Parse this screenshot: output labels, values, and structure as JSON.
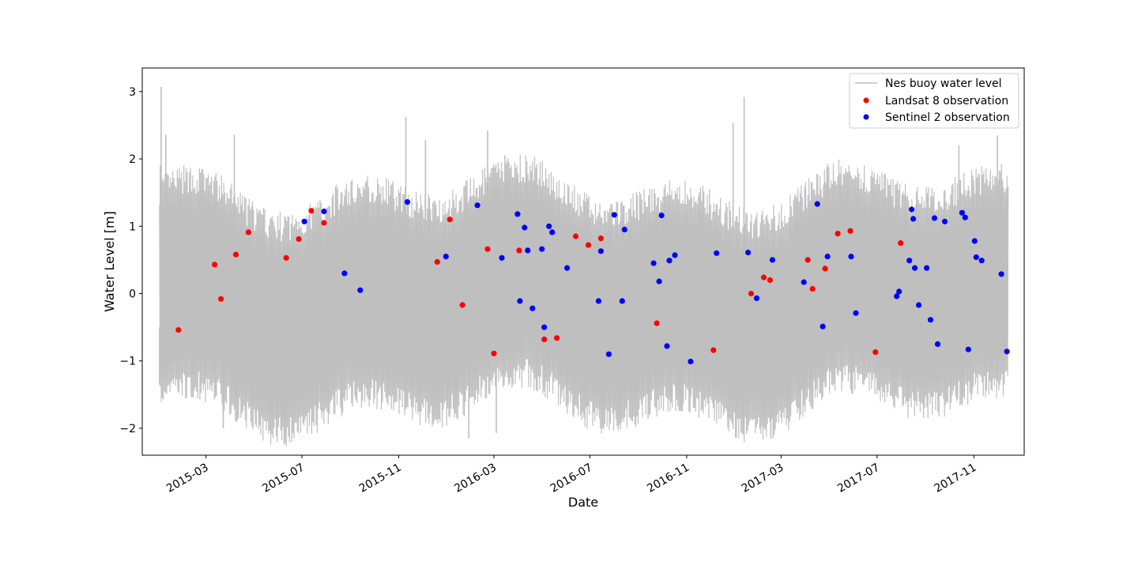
{
  "chart_data": {
    "type": "scatter",
    "xlabel": "Date",
    "ylabel": "Water Level [m]",
    "ylim": [
      -2.4,
      3.35
    ],
    "xlim": [
      "2014-12-10",
      "2018-01-04"
    ],
    "x_ticks": [
      {
        "date": "2015-03-01",
        "label": "2015-03"
      },
      {
        "date": "2015-07-01",
        "label": "2015-07"
      },
      {
        "date": "2015-11-01",
        "label": "2015-11"
      },
      {
        "date": "2016-03-01",
        "label": "2016-03"
      },
      {
        "date": "2016-07-01",
        "label": "2016-07"
      },
      {
        "date": "2016-11-01",
        "label": "2016-11"
      },
      {
        "date": "2017-03-01",
        "label": "2017-03"
      },
      {
        "date": "2017-07-01",
        "label": "2017-07"
      },
      {
        "date": "2017-11-01",
        "label": "2017-11"
      }
    ],
    "y_ticks": [
      {
        "value": 3,
        "label": "3"
      },
      {
        "value": 2,
        "label": "2"
      },
      {
        "value": 1,
        "label": "1"
      },
      {
        "value": 0,
        "label": "0"
      },
      {
        "value": -1,
        "label": "−1"
      },
      {
        "value": -2,
        "label": "−2"
      }
    ],
    "legend_position": "top-right",
    "series": [
      {
        "name": "Nes buoy water level",
        "kind": "line",
        "color": "#bfbfbf",
        "x_start": "2015-01-01",
        "x_end": "2017-12-15",
        "typical_range": [
          -1.55,
          1.45
        ],
        "peaks": [
          {
            "x": "2015-01-03",
            "y": 3.07
          },
          {
            "x": "2015-01-02",
            "y": 1.9
          },
          {
            "x": "2015-01-09",
            "y": 2.36
          },
          {
            "x": "2015-04-06",
            "y": 2.36
          },
          {
            "x": "2015-11-10",
            "y": 2.62
          },
          {
            "x": "2015-12-05",
            "y": 2.28
          },
          {
            "x": "2016-02-22",
            "y": 2.42
          },
          {
            "x": "2016-03-15",
            "y": 2.05
          },
          {
            "x": "2016-12-30",
            "y": 2.53
          },
          {
            "x": "2017-01-13",
            "y": 2.92
          },
          {
            "x": "2017-10-13",
            "y": 2.2
          },
          {
            "x": "2017-12-01",
            "y": 2.35
          }
        ],
        "troughs": [
          {
            "x": "2015-03-23",
            "y": -2.0
          },
          {
            "x": "2016-01-29",
            "y": -2.15
          },
          {
            "x": "2016-03-04",
            "y": -2.07
          },
          {
            "x": "2017-02-16",
            "y": -2.15
          },
          {
            "x": "2015-01-01",
            "y": -1.35
          }
        ]
      },
      {
        "name": "Landsat 8 observation",
        "kind": "scatter",
        "color": "#ff0000",
        "points": [
          {
            "x": "2015-01-25",
            "y": -0.54
          },
          {
            "x": "2015-03-12",
            "y": 0.43
          },
          {
            "x": "2015-03-20",
            "y": -0.08
          },
          {
            "x": "2015-04-08",
            "y": 0.58
          },
          {
            "x": "2015-04-24",
            "y": 0.91
          },
          {
            "x": "2015-06-11",
            "y": 0.53
          },
          {
            "x": "2015-06-27",
            "y": 0.81
          },
          {
            "x": "2015-07-13",
            "y": 1.23
          },
          {
            "x": "2015-07-29",
            "y": 1.05
          },
          {
            "x": "2015-12-20",
            "y": 0.47
          },
          {
            "x": "2016-01-05",
            "y": 1.1
          },
          {
            "x": "2016-01-21",
            "y": -0.17
          },
          {
            "x": "2016-02-22",
            "y": 0.66
          },
          {
            "x": "2016-03-01",
            "y": -0.89
          },
          {
            "x": "2016-04-02",
            "y": 0.64
          },
          {
            "x": "2016-05-04",
            "y": -0.68
          },
          {
            "x": "2016-05-20",
            "y": -0.66
          },
          {
            "x": "2016-06-13",
            "y": 0.85
          },
          {
            "x": "2016-06-29",
            "y": 0.72
          },
          {
            "x": "2016-07-15",
            "y": 0.82
          },
          {
            "x": "2016-09-24",
            "y": -0.44
          },
          {
            "x": "2016-12-05",
            "y": -0.84
          },
          {
            "x": "2017-01-22",
            "y": 0.0
          },
          {
            "x": "2017-02-07",
            "y": 0.24
          },
          {
            "x": "2017-02-15",
            "y": 0.2
          },
          {
            "x": "2017-04-04",
            "y": 0.5
          },
          {
            "x": "2017-04-10",
            "y": 0.07
          },
          {
            "x": "2017-04-26",
            "y": 0.37
          },
          {
            "x": "2017-05-12",
            "y": 0.89
          },
          {
            "x": "2017-05-28",
            "y": 0.93
          },
          {
            "x": "2017-06-29",
            "y": -0.87
          },
          {
            "x": "2017-07-31",
            "y": 0.75
          }
        ]
      },
      {
        "name": "Sentinel 2 observation",
        "kind": "scatter",
        "color": "#0000ff",
        "points": [
          {
            "x": "2015-07-04",
            "y": 1.07
          },
          {
            "x": "2015-07-29",
            "y": 1.22
          },
          {
            "x": "2015-08-24",
            "y": 0.3
          },
          {
            "x": "2015-09-13",
            "y": 0.05
          },
          {
            "x": "2015-11-12",
            "y": 1.36
          },
          {
            "x": "2015-12-31",
            "y": 0.55
          },
          {
            "x": "2016-02-09",
            "y": 1.31
          },
          {
            "x": "2016-03-11",
            "y": 0.53
          },
          {
            "x": "2016-03-31",
            "y": 1.18
          },
          {
            "x": "2016-04-03",
            "y": -0.11
          },
          {
            "x": "2016-04-09",
            "y": 0.98
          },
          {
            "x": "2016-04-13",
            "y": 0.64
          },
          {
            "x": "2016-04-19",
            "y": -0.22
          },
          {
            "x": "2016-05-01",
            "y": 0.66
          },
          {
            "x": "2016-05-04",
            "y": -0.5
          },
          {
            "x": "2016-05-10",
            "y": 1.0
          },
          {
            "x": "2016-05-14",
            "y": 0.91
          },
          {
            "x": "2016-06-02",
            "y": 0.38
          },
          {
            "x": "2016-07-12",
            "y": -0.11
          },
          {
            "x": "2016-07-15",
            "y": 0.63
          },
          {
            "x": "2016-07-25",
            "y": -0.9
          },
          {
            "x": "2016-08-01",
            "y": 1.17
          },
          {
            "x": "2016-08-11",
            "y": -0.11
          },
          {
            "x": "2016-08-14",
            "y": 0.95
          },
          {
            "x": "2016-09-20",
            "y": 0.45
          },
          {
            "x": "2016-09-27",
            "y": 0.18
          },
          {
            "x": "2016-09-30",
            "y": 1.16
          },
          {
            "x": "2016-10-07",
            "y": -0.78
          },
          {
            "x": "2016-10-10",
            "y": 0.49
          },
          {
            "x": "2016-10-17",
            "y": 0.57
          },
          {
            "x": "2016-11-06",
            "y": -1.01
          },
          {
            "x": "2016-12-09",
            "y": 0.6
          },
          {
            "x": "2017-01-18",
            "y": 0.61
          },
          {
            "x": "2017-01-29",
            "y": -0.07
          },
          {
            "x": "2017-02-18",
            "y": 0.5
          },
          {
            "x": "2017-03-30",
            "y": 0.17
          },
          {
            "x": "2017-04-16",
            "y": 1.33
          },
          {
            "x": "2017-04-23",
            "y": -0.49
          },
          {
            "x": "2017-04-29",
            "y": 0.55
          },
          {
            "x": "2017-05-29",
            "y": 0.55
          },
          {
            "x": "2017-06-04",
            "y": -0.29
          },
          {
            "x": "2017-07-26",
            "y": -0.04
          },
          {
            "x": "2017-07-29",
            "y": 0.03
          },
          {
            "x": "2017-08-11",
            "y": 0.49
          },
          {
            "x": "2017-08-14",
            "y": 1.25
          },
          {
            "x": "2017-08-16",
            "y": 1.11
          },
          {
            "x": "2017-08-18",
            "y": 0.38
          },
          {
            "x": "2017-08-23",
            "y": -0.17
          },
          {
            "x": "2017-09-02",
            "y": 0.38
          },
          {
            "x": "2017-09-07",
            "y": -0.39
          },
          {
            "x": "2017-09-12",
            "y": 1.12
          },
          {
            "x": "2017-09-16",
            "y": -0.75
          },
          {
            "x": "2017-09-25",
            "y": 1.07
          },
          {
            "x": "2017-10-17",
            "y": 1.2
          },
          {
            "x": "2017-10-21",
            "y": 1.13
          },
          {
            "x": "2017-10-25",
            "y": -0.83
          },
          {
            "x": "2017-11-02",
            "y": 0.78
          },
          {
            "x": "2017-11-04",
            "y": 0.54
          },
          {
            "x": "2017-11-11",
            "y": 0.49
          },
          {
            "x": "2017-12-06",
            "y": 0.29
          },
          {
            "x": "2017-12-13",
            "y": -0.86
          }
        ]
      }
    ]
  }
}
